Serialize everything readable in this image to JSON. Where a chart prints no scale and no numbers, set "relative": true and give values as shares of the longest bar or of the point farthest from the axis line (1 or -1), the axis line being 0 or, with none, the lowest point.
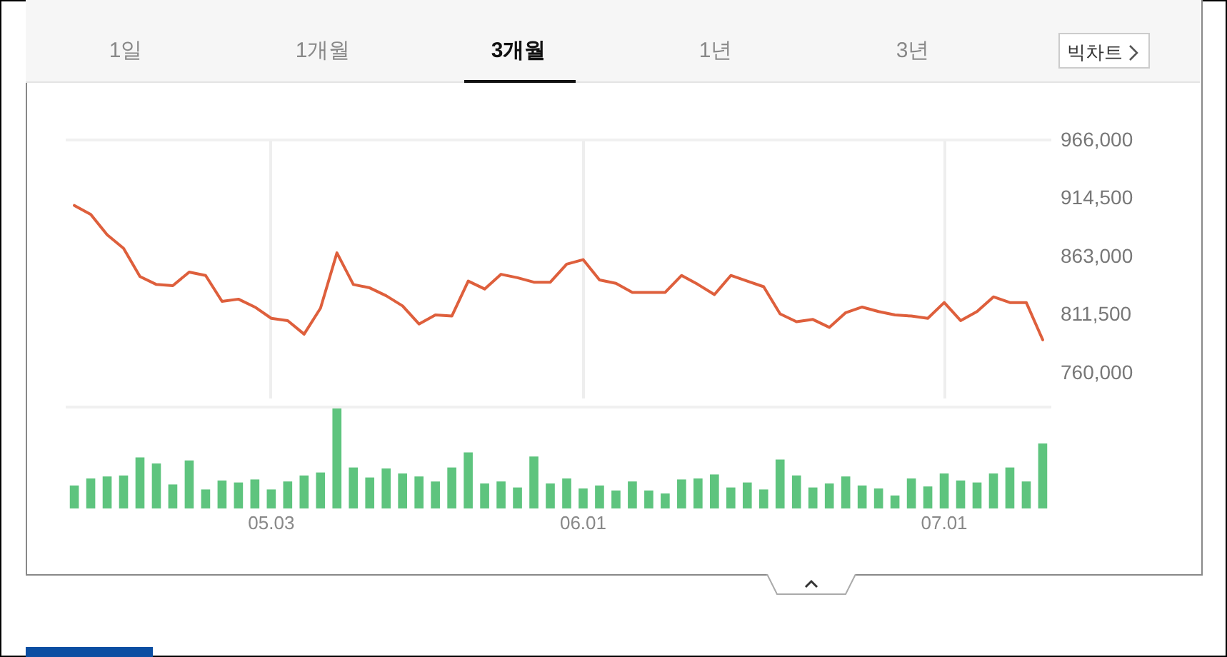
{
  "chart_data": [
    {
      "type": "line",
      "annotations": [
        "1일",
        "1개월",
        "3개월",
        "1년",
        "3년",
        "빅차트"
      ],
      "categories": [
        null,
        null,
        null,
        null,
        null,
        null,
        null,
        null,
        null,
        null,
        null,
        null,
        "05.03",
        null,
        null,
        null,
        null,
        null,
        null,
        null,
        null,
        null,
        null,
        null,
        null,
        null,
        null,
        null,
        null,
        null,
        null,
        "06.01",
        null,
        null,
        null,
        null,
        null,
        null,
        null,
        null,
        null,
        null,
        null,
        null,
        null,
        null,
        null,
        null,
        null,
        null,
        null,
        null,
        null,
        "07.01",
        null,
        null,
        null,
        null,
        null,
        null
      ],
      "values": [
        908000,
        900000,
        882000,
        870000,
        845000,
        838000,
        837000,
        849000,
        846000,
        823000,
        825000,
        818000,
        808000,
        806000,
        794000,
        817000,
        866000,
        838000,
        835000,
        828000,
        819000,
        803000,
        811000,
        810000,
        841000,
        834000,
        847000,
        844000,
        840000,
        840000,
        856000,
        860000,
        842000,
        839000,
        831000,
        831000,
        831000,
        846000,
        838000,
        829000,
        846000,
        841000,
        836000,
        812000,
        805000,
        807000,
        800000,
        813000,
        818000,
        814000,
        811000,
        810000,
        808000,
        822000,
        806000,
        814000,
        827000,
        822000,
        822000,
        789000
      ],
      "color": "#de5f3c",
      "ylim": [
        737000,
        966000
      ],
      "yticks": [
        {
          "value": 760000,
          "label": "760,000"
        },
        {
          "value": 811500,
          "label": "811,500"
        },
        {
          "value": 863000,
          "label": "863,000"
        },
        {
          "value": 914500,
          "label": "914,500"
        },
        {
          "value": 966000,
          "label": "966,000"
        }
      ],
      "grid": "x",
      "tick_labels": "y"
    },
    {
      "type": "bar",
      "relative": true,
      "categories": [
        null,
        null,
        null,
        null,
        null,
        null,
        null,
        null,
        null,
        null,
        null,
        null,
        "05.03",
        null,
        null,
        null,
        null,
        null,
        null,
        null,
        null,
        null,
        null,
        null,
        null,
        null,
        null,
        null,
        null,
        null,
        null,
        "06.01",
        null,
        null,
        null,
        null,
        null,
        null,
        null,
        null,
        null,
        null,
        null,
        null,
        null,
        null,
        null,
        null,
        null,
        null,
        null,
        null,
        null,
        "07.01",
        null,
        null,
        null,
        null,
        null,
        null
      ],
      "values": [
        0.23,
        0.3,
        0.32,
        0.33,
        0.51,
        0.45,
        0.24,
        0.48,
        0.19,
        0.28,
        0.26,
        0.29,
        0.19,
        0.27,
        0.33,
        0.36,
        1.0,
        0.41,
        0.31,
        0.4,
        0.35,
        0.32,
        0.27,
        0.41,
        0.56,
        0.25,
        0.27,
        0.21,
        0.52,
        0.25,
        0.3,
        0.2,
        0.23,
        0.18,
        0.27,
        0.18,
        0.15,
        0.29,
        0.3,
        0.34,
        0.21,
        0.26,
        0.19,
        0.49,
        0.33,
        0.21,
        0.25,
        0.32,
        0.23,
        0.2,
        0.13,
        0.3,
        0.22,
        0.35,
        0.28,
        0.26,
        0.35,
        0.41,
        0.27,
        0.65
      ],
      "color": "#5ec47e",
      "tick_labels": "x"
    }
  ]
}
